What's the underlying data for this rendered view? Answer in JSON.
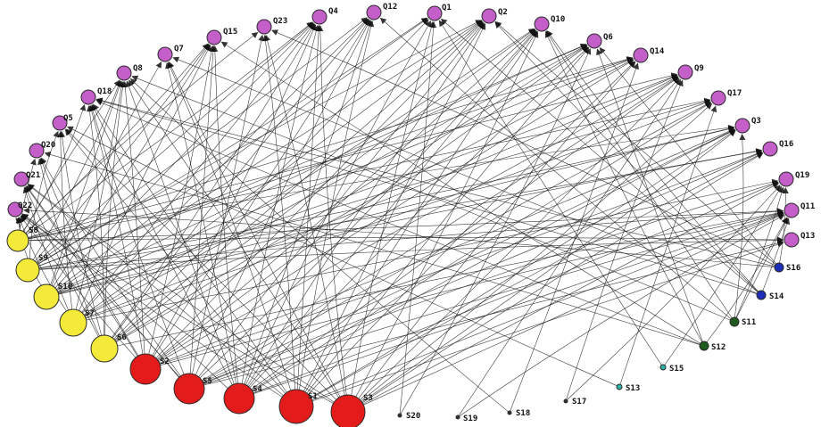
{
  "nodes": [
    {
      "id": "Q1",
      "type": "question",
      "color": "#c45ec8",
      "r": 8
    },
    {
      "id": "Q2",
      "type": "question",
      "color": "#c45ec8",
      "r": 8
    },
    {
      "id": "Q3",
      "type": "question",
      "color": "#c45ec8",
      "r": 8
    },
    {
      "id": "Q4",
      "type": "question",
      "color": "#c45ec8",
      "r": 8
    },
    {
      "id": "Q5",
      "type": "question",
      "color": "#c45ec8",
      "r": 8
    },
    {
      "id": "Q6",
      "type": "question",
      "color": "#c45ec8",
      "r": 8
    },
    {
      "id": "Q7",
      "type": "question",
      "color": "#c45ec8",
      "r": 8
    },
    {
      "id": "Q8",
      "type": "question",
      "color": "#c45ec8",
      "r": 8
    },
    {
      "id": "Q9",
      "type": "question",
      "color": "#c45ec8",
      "r": 8
    },
    {
      "id": "Q10",
      "type": "question",
      "color": "#c45ec8",
      "r": 8
    },
    {
      "id": "Q11",
      "type": "question",
      "color": "#c45ec8",
      "r": 8
    },
    {
      "id": "Q12",
      "type": "question",
      "color": "#c45ec8",
      "r": 8
    },
    {
      "id": "Q13",
      "type": "question",
      "color": "#c45ec8",
      "r": 8
    },
    {
      "id": "Q14",
      "type": "question",
      "color": "#c45ec8",
      "r": 8
    },
    {
      "id": "Q15",
      "type": "question",
      "color": "#c45ec8",
      "r": 8
    },
    {
      "id": "Q16",
      "type": "question",
      "color": "#c45ec8",
      "r": 8
    },
    {
      "id": "Q17",
      "type": "question",
      "color": "#c45ec8",
      "r": 8
    },
    {
      "id": "Q18",
      "type": "question",
      "color": "#c45ec8",
      "r": 8
    },
    {
      "id": "Q19",
      "type": "question",
      "color": "#c45ec8",
      "r": 8
    },
    {
      "id": "Q20",
      "type": "question",
      "color": "#c45ec8",
      "r": 8
    },
    {
      "id": "Q21",
      "type": "question",
      "color": "#c45ec8",
      "r": 8
    },
    {
      "id": "Q22",
      "type": "question",
      "color": "#c45ec8",
      "r": 8
    },
    {
      "id": "Q23",
      "type": "question",
      "color": "#c45ec8",
      "r": 8
    },
    {
      "id": "S1",
      "type": "student-high",
      "color": "#e41b1b",
      "r": 19
    },
    {
      "id": "S2",
      "type": "student-high",
      "color": "#e41b1b",
      "r": 17
    },
    {
      "id": "S3",
      "type": "student-high",
      "color": "#e41b1b",
      "r": 19
    },
    {
      "id": "S4",
      "type": "student-high",
      "color": "#e41b1b",
      "r": 17
    },
    {
      "id": "S5",
      "type": "student-high",
      "color": "#e41b1b",
      "r": 17
    },
    {
      "id": "S6",
      "type": "student-mid",
      "color": "#f4ea3a",
      "r": 15
    },
    {
      "id": "S7",
      "type": "student-mid",
      "color": "#f4ea3a",
      "r": 15
    },
    {
      "id": "S8",
      "type": "student-mid",
      "color": "#f4ea3a",
      "r": 12
    },
    {
      "id": "S9",
      "type": "student-mid",
      "color": "#f4ea3a",
      "r": 13
    },
    {
      "id": "S10",
      "type": "student-mid",
      "color": "#f4ea3a",
      "r": 14
    },
    {
      "id": "S11",
      "type": "student-low",
      "color": "#1f5a1f",
      "r": 5
    },
    {
      "id": "S12",
      "type": "student-low",
      "color": "#1f5a1f",
      "r": 5
    },
    {
      "id": "S13",
      "type": "student-low",
      "color": "#2fb0a8",
      "r": 3
    },
    {
      "id": "S14",
      "type": "student-low",
      "color": "#1d2fb8",
      "r": 5
    },
    {
      "id": "S15",
      "type": "student-low",
      "color": "#2fb0a8",
      "r": 3
    },
    {
      "id": "S16",
      "type": "student-low",
      "color": "#1d2fb8",
      "r": 5
    },
    {
      "id": "S17",
      "type": "student-low",
      "color": "#333333",
      "r": 2
    },
    {
      "id": "S18",
      "type": "student-low",
      "color": "#333333",
      "r": 2
    },
    {
      "id": "S19",
      "type": "student-low",
      "color": "#333333",
      "r": 2
    },
    {
      "id": "S20",
      "type": "student-low",
      "color": "#333333",
      "r": 2
    }
  ]
}
